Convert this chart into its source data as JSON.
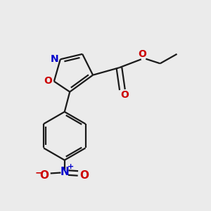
{
  "bg_color": "#ebebeb",
  "bond_color": "#1a1a1a",
  "n_color": "#0000cc",
  "o_color": "#cc0000",
  "line_width": 1.6,
  "figsize": [
    3.0,
    3.0
  ],
  "dpi": 100,
  "xlim": [
    0,
    1
  ],
  "ylim": [
    0,
    1
  ]
}
